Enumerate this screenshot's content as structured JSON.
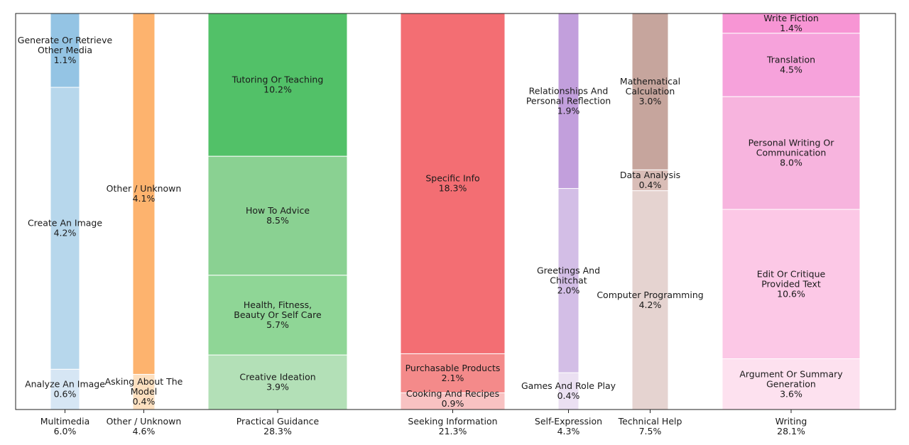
{
  "chart_data": {
    "type": "bar",
    "stacked": true,
    "variable_width": true,
    "grid": false,
    "legend": "none",
    "ylim": [
      0,
      100
    ],
    "categories": [
      {
        "name": "Multimedia",
        "total": "6.0%",
        "share": 6.0,
        "segments": [
          {
            "label": "Analyze An Image",
            "pct_text": "0.6%",
            "value": 0.6,
            "color": "#d6e6f4"
          },
          {
            "label": "Create An Image",
            "pct_text": "4.2%",
            "value": 4.2,
            "color": "#b7d7ec"
          },
          {
            "label": "Generate Or Retrieve Other Media",
            "pct_text": "1.1%",
            "value": 1.1,
            "color": "#94c4e4"
          }
        ]
      },
      {
        "name": "Other / Unknown",
        "total": "4.6%",
        "share": 4.6,
        "segments": [
          {
            "label": "Asking About The Model",
            "pct_text": "0.4%",
            "value": 0.4,
            "color": "#fde0c0"
          },
          {
            "label": "Other / Unknown",
            "pct_text": "4.1%",
            "value": 4.1,
            "color": "#fdb36e"
          }
        ]
      },
      {
        "name": "Practical Guidance",
        "total": "28.3%",
        "share": 28.3,
        "segments": [
          {
            "label": "Creative Ideation",
            "pct_text": "3.9%",
            "value": 3.9,
            "color": "#b3e0b7"
          },
          {
            "label": "Health, Fitness, Beauty Or Self Care",
            "pct_text": "5.7%",
            "value": 5.7,
            "color": "#8fd696"
          },
          {
            "label": "How To Advice",
            "pct_text": "8.5%",
            "value": 8.5,
            "color": "#8ad192"
          },
          {
            "label": "Tutoring Or Teaching",
            "pct_text": "10.2%",
            "value": 10.2,
            "color": "#52c168"
          }
        ]
      },
      {
        "name": "Seeking Information",
        "total": "21.3%",
        "share": 21.3,
        "segments": [
          {
            "label": "Cooking And Recipes",
            "pct_text": "0.9%",
            "value": 0.9,
            "color": "#f8c2c2"
          },
          {
            "label": "Purchasable Products",
            "pct_text": "2.1%",
            "value": 2.1,
            "color": "#f48a8a"
          },
          {
            "label": "Specific Info",
            "pct_text": "18.3%",
            "value": 18.3,
            "color": "#f36e73"
          }
        ]
      },
      {
        "name": "Self-Expression",
        "total": "4.3%",
        "share": 4.3,
        "segments": [
          {
            "label": "Games And Role Play",
            "pct_text": "0.4%",
            "value": 0.4,
            "color": "#ebe0f2"
          },
          {
            "label": "Greetings And Chitchat",
            "pct_text": "2.0%",
            "value": 2.0,
            "color": "#d3bee6"
          },
          {
            "label": "Relationships And Personal Reflection",
            "pct_text": "1.9%",
            "value": 1.9,
            "color": "#c29fdc"
          }
        ]
      },
      {
        "name": "Technical Help",
        "total": "7.5%",
        "share": 7.5,
        "segments": [
          {
            "label": "Computer Programming",
            "pct_text": "4.2%",
            "value": 4.2,
            "color": "#e5d3d0"
          },
          {
            "label": "Data Analysis",
            "pct_text": "0.4%",
            "value": 0.4,
            "color": "#d9bdb7"
          },
          {
            "label": "Mathematical Calculation",
            "pct_text": "3.0%",
            "value": 3.0,
            "color": "#c6a59d"
          }
        ]
      },
      {
        "name": "Writing",
        "total": "28.1%",
        "share": 28.1,
        "segments": [
          {
            "label": "Argument Or Summary Generation",
            "pct_text": "3.6%",
            "value": 3.6,
            "color": "#fde1ef"
          },
          {
            "label": "Edit Or Critique Provided Text",
            "pct_text": "10.6%",
            "value": 10.6,
            "color": "#fcc8e6"
          },
          {
            "label": "Personal Writing Or Communication",
            "pct_text": "8.0%",
            "value": 8.0,
            "color": "#f7b4de"
          },
          {
            "label": "Translation",
            "pct_text": "4.5%",
            "value": 4.5,
            "color": "#f6a2db"
          },
          {
            "label": "Write Fiction",
            "pct_text": "1.4%",
            "value": 1.4,
            "color": "#f795d4"
          }
        ]
      }
    ]
  }
}
